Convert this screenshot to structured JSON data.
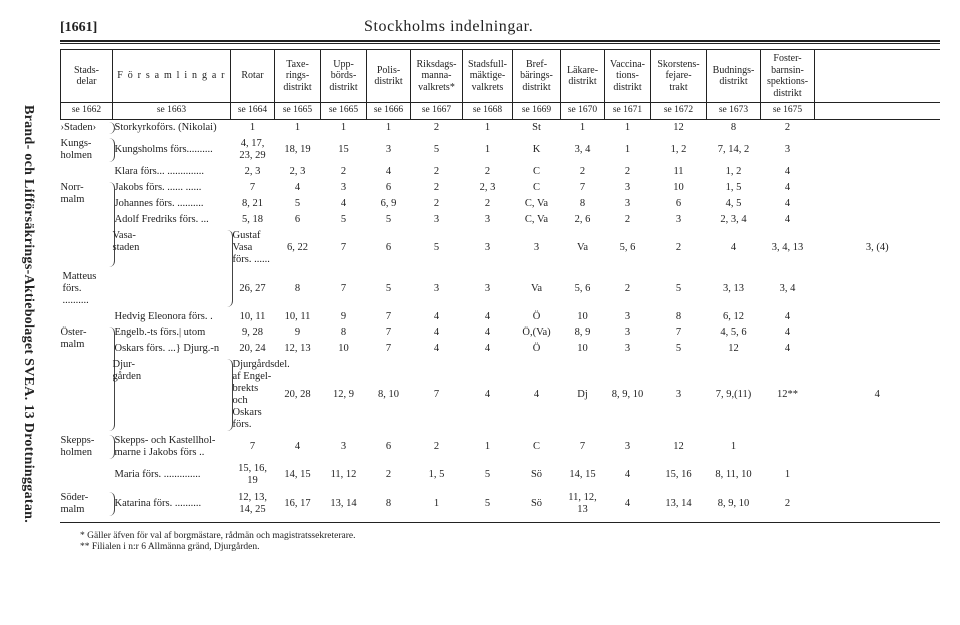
{
  "pageNumber": "[1661]",
  "title": "Stockholms indelningar.",
  "verticalLabel": "Brand- och Lifförsäkrings-Aktiebolaget SVEA.  13 Drottninggatan.",
  "headers": {
    "row1": [
      "Stads-\ndelar",
      "F ö r s a m l i n g a r",
      "Rotar",
      "Taxe-\nrings-\ndistrikt",
      "Upp-\nbörds-\ndistrikt",
      "Polis-\ndistrikt",
      "Riksdags-\nmanna-\nvalkrets*",
      "Stadsfull-\nmäktige-\nvalkrets",
      "Bref-\nbärings-\ndistrikt",
      "Läkare-\ndistrikt",
      "Vaccina-\ntions-\ndistrikt",
      "Skorstens-\nfejare-\ntrakt",
      "Budnings-\ndistrikt",
      "Foster-\nbarnsin-\nspektions-\ndistrikt"
    ],
    "row2": [
      "se 1662",
      "se 1663",
      "se 1664",
      "se 1665",
      "se 1665",
      "se 1666",
      "se 1667",
      "se 1668",
      "se 1669",
      "se 1670",
      "se 1671",
      "se 1672",
      "se 1673",
      "se 1675"
    ]
  },
  "rows": [
    {
      "g": "›Staden›",
      "f": "Storkyrkoförs. (Nikolai)",
      "c": [
        "1",
        "1",
        "1",
        "1",
        "2",
        "1",
        "St",
        "1",
        "1",
        "12",
        "8",
        "2"
      ]
    },
    {
      "g": "Kungs-\nholmen",
      "gRows": 1,
      "f": "Kungsholms förs..........",
      "c": [
        "4, 17,\n23, 29",
        "18, 19",
        "15",
        "3",
        "5",
        "1",
        "K",
        "3, 4",
        "1",
        "1, 2",
        "7, 14, 2",
        "3"
      ]
    },
    {
      "g": "",
      "f": "Klara förs... ..............",
      "c": [
        "2, 3",
        "2, 3",
        "2",
        "4",
        "2",
        "2",
        "C",
        "2",
        "2",
        "11",
        "1, 2",
        "4"
      ]
    },
    {
      "g": "Norr-\nmalm",
      "gRows": 4,
      "gStart": true,
      "f": "Jakobs förs. ...... ......",
      "c": [
        "7",
        "4",
        "3",
        "6",
        "2",
        "2, 3",
        "C",
        "7",
        "3",
        "10",
        "1, 5",
        "4"
      ]
    },
    {
      "f": "Johannes förs. ..........",
      "c": [
        "8, 21",
        "5",
        "4",
        "6, 9",
        "2",
        "2",
        "C, Va",
        "8",
        "3",
        "6",
        "4, 5",
        "4"
      ]
    },
    {
      "f": "Adolf Fredriks förs. ...",
      "c": [
        "5, 18",
        "6",
        "5",
        "5",
        "3",
        "3",
        "C, Va",
        "2, 6",
        "2",
        "3",
        "2, 3, 4",
        "4"
      ]
    },
    {
      "g": "Vasa-\nstaden",
      "gRows": 2,
      "f": "Gustaf Vasa förs. ......",
      "c": [
        "6, 22",
        "7",
        "6",
        "5",
        "3",
        "3",
        "Va",
        "5, 6",
        "2",
        "4",
        "3, 4, 13",
        "3, (4)"
      ]
    },
    {
      "f": "Matteus förs. ..........",
      "c": [
        "26, 27",
        "8",
        "7",
        "5",
        "3",
        "3",
        "Va",
        "5, 6",
        "2",
        "5",
        "3, 13",
        "3, 4"
      ]
    },
    {
      "g": "",
      "f": "Hedvig Eleonora förs. .",
      "c": [
        "10, 11",
        "10, 11",
        "9",
        "7",
        "4",
        "4",
        "Ö",
        "10",
        "3",
        "8",
        "6, 12",
        "4"
      ]
    },
    {
      "g": "Öster-\nmalm",
      "gRows": 3,
      "gStart": true,
      "f": "Engelb.-ts förs.| utom",
      "c": [
        "9, 28",
        "9",
        "8",
        "7",
        "4",
        "4",
        "Ö,(Va)",
        "8, 9",
        "3",
        "7",
        "4, 5, 6",
        "4"
      ]
    },
    {
      "f": "Oskars förs. ...} Djurg.-n",
      "c": [
        "20, 24",
        "12, 13",
        "10",
        "7",
        "4",
        "4",
        "Ö",
        "10",
        "3",
        "5",
        "12",
        "4"
      ]
    },
    {
      "g": "Djur-\ngården",
      "gRows": 1,
      "f": "Djurgårdsdel. af Engel-\nbrekts och Oskars förs.",
      "c": [
        "20, 28",
        "12, 9",
        "8, 10",
        "7",
        "4",
        "4",
        "Dj",
        "8, 9, 10",
        "3",
        "7, 9,(11)",
        "12**",
        "4"
      ]
    },
    {
      "g": "Skepps-\nholmen",
      "gRows": 1,
      "f": "Skepps- och Kastellhol-\nmarne i Jakobs förs ..",
      "c": [
        "7",
        "4",
        "3",
        "6",
        "2",
        "1",
        "C",
        "7",
        "3",
        "12",
        "1",
        ""
      ]
    },
    {
      "g": "",
      "f": "Maria förs. ..............",
      "c": [
        "15, 16,\n19",
        "14, 15",
        "11, 12",
        "2",
        "1, 5",
        "5",
        "Sö",
        "14, 15",
        "4",
        "15, 16",
        "8, 11, 10",
        "1"
      ]
    },
    {
      "g": "Söder-\nmalm",
      "gRows": 2,
      "gStart": true,
      "f": "Katarina förs. ..........",
      "c": [
        "12, 13,\n14, 25",
        "16, 17",
        "13, 14",
        "8",
        "1",
        "5",
        "Sö",
        "11, 12,\n13",
        "4",
        "13, 14",
        "8, 9, 10",
        "2"
      ]
    }
  ],
  "footnotes": [
    "* Gäller äfven för val af borgmästare, rådmän och magistratssekreterare.",
    "** Filialen i n:r 6 Allmänna gränd, Djurgården."
  ]
}
